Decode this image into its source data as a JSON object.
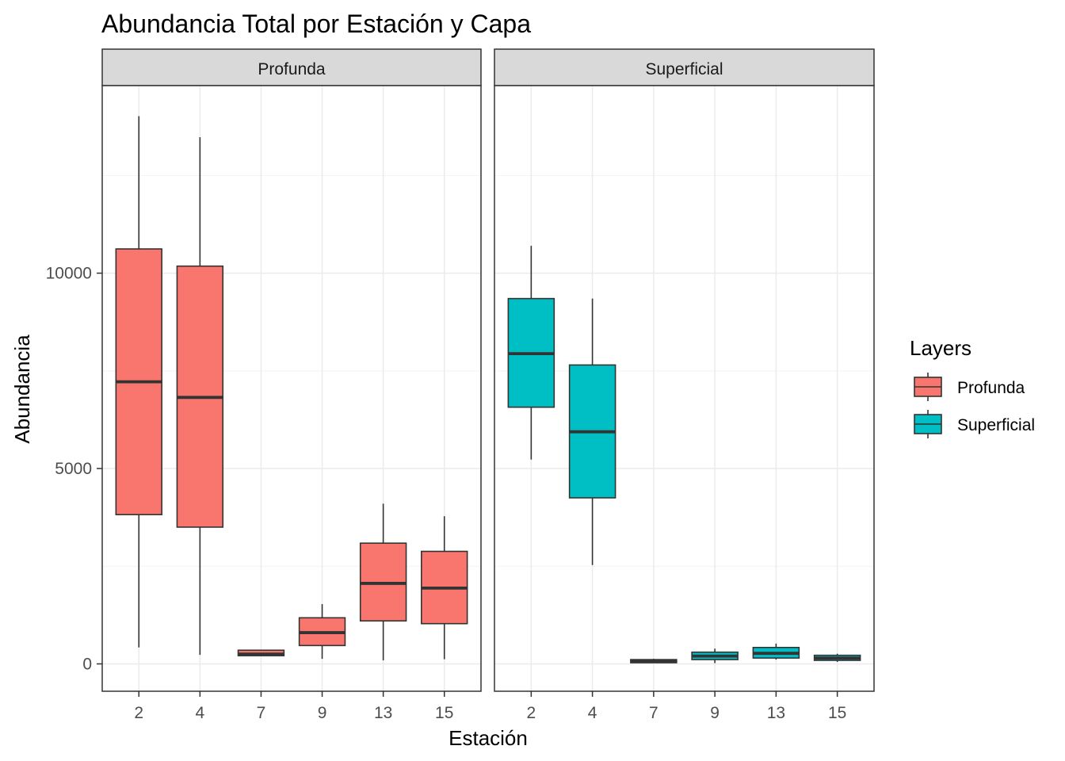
{
  "chart_data": {
    "type": "boxplot",
    "title": "Abundancia Total por Estación y Capa",
    "xlabel": "Estación",
    "ylabel": "Abundancia",
    "categories": [
      "2",
      "4",
      "7",
      "9",
      "13",
      "15"
    ],
    "yticks": [
      0,
      5000,
      10000
    ],
    "ytick_labels": [
      "0",
      "5000",
      "10000"
    ],
    "ylim": [
      -700,
      14800
    ],
    "grid": true,
    "legend": {
      "title": "Layers",
      "position": "right",
      "entries": [
        {
          "label": "Profunda",
          "color": "#F8766D"
        },
        {
          "label": "Superficial",
          "color": "#00BFC4"
        }
      ]
    },
    "facets": [
      {
        "name": "Profunda",
        "color": "#F8766D",
        "boxes": [
          {
            "x": "2",
            "min": 420,
            "q1": 3820,
            "median": 7220,
            "q3": 10620,
            "max": 14020
          },
          {
            "x": "4",
            "min": 230,
            "q1": 3500,
            "median": 6820,
            "q3": 10180,
            "max": 13480
          },
          {
            "x": "7",
            "min": 200,
            "q1": 210,
            "median": 250,
            "q3": 350,
            "max": 360
          },
          {
            "x": "9",
            "min": 130,
            "q1": 470,
            "median": 800,
            "q3": 1180,
            "max": 1530
          },
          {
            "x": "13",
            "min": 90,
            "q1": 1100,
            "median": 2060,
            "q3": 3090,
            "max": 4100
          },
          {
            "x": "15",
            "min": 120,
            "q1": 1030,
            "median": 1940,
            "q3": 2880,
            "max": 3780
          }
        ]
      },
      {
        "name": "Superficial",
        "color": "#00BFC4",
        "boxes": [
          {
            "x": "2",
            "min": 5230,
            "q1": 6570,
            "median": 7940,
            "q3": 9350,
            "max": 10700
          },
          {
            "x": "4",
            "min": 2530,
            "q1": 4250,
            "median": 5940,
            "q3": 7650,
            "max": 9350
          },
          {
            "x": "7",
            "min": 20,
            "q1": 30,
            "median": 60,
            "q3": 110,
            "max": 130
          },
          {
            "x": "9",
            "min": 20,
            "q1": 110,
            "median": 200,
            "q3": 300,
            "max": 390
          },
          {
            "x": "13",
            "min": 110,
            "q1": 150,
            "median": 270,
            "q3": 420,
            "max": 520
          },
          {
            "x": "15",
            "min": 50,
            "q1": 90,
            "median": 150,
            "q3": 220,
            "max": 260
          }
        ]
      }
    ]
  }
}
